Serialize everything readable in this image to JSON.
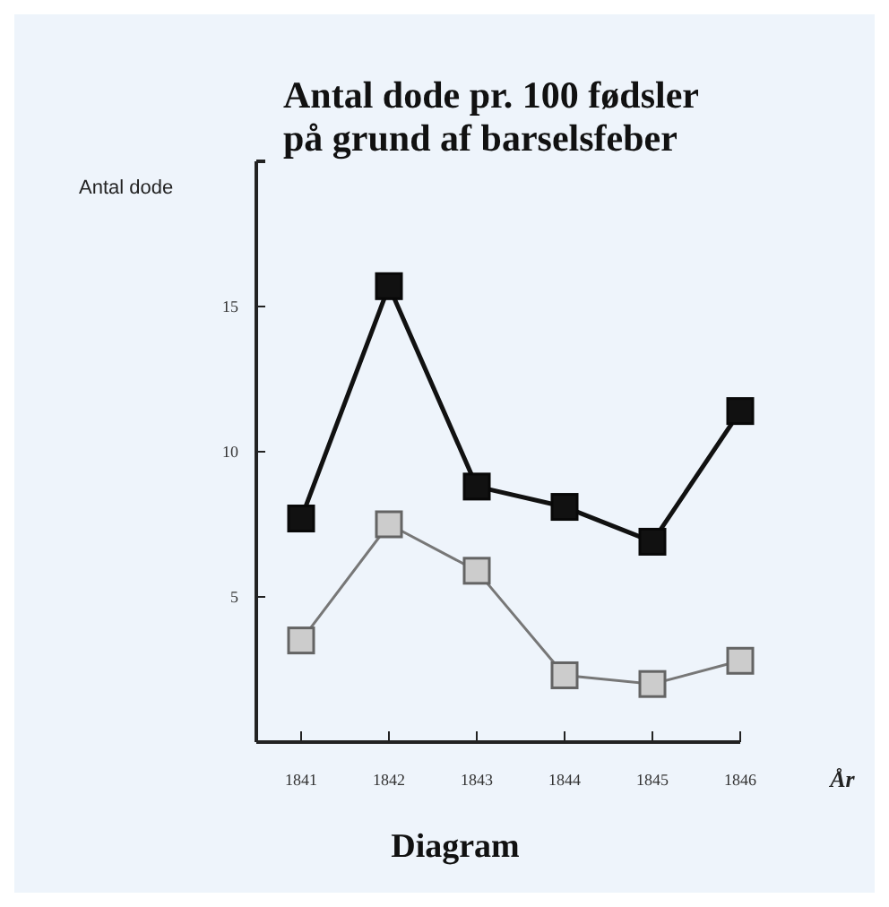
{
  "chart_data": {
    "type": "line",
    "title": "Antal dode pr. 100 fødsler\npå grund af barselsfeber",
    "ylabel": "Antal dode",
    "xlabel": "År",
    "annotations": [
      "Diagram"
    ],
    "categories": [
      "1841",
      "1842",
      "1843",
      "1844",
      "1845",
      "1846"
    ],
    "series": [
      {
        "color": "#111111",
        "values": [
          7.7,
          15.7,
          8.8,
          8.1,
          6.9,
          11.4
        ]
      },
      {
        "color": "#cccccc",
        "values": [
          3.5,
          7.5,
          5.9,
          2.3,
          2.0,
          2.8
        ]
      }
    ],
    "ylim": [
      0,
      20
    ],
    "yticks": [
      5,
      10,
      15
    ],
    "marker": "square",
    "line_style": "solid"
  }
}
